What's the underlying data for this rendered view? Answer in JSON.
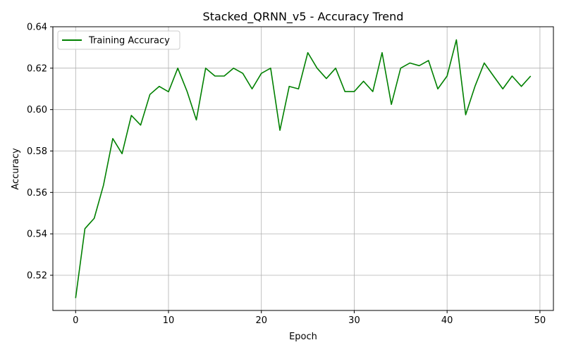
{
  "chart_data": {
    "type": "line",
    "title": "Stacked_QRNN_v5 - Accuracy Trend",
    "xlabel": "Epoch",
    "ylabel": "Accuracy",
    "xlim": [
      -2.45,
      51.45
    ],
    "ylim": [
      0.503,
      0.64
    ],
    "xticks": [
      0,
      10,
      20,
      30,
      40,
      50
    ],
    "xtick_labels": [
      "0",
      "10",
      "20",
      "30",
      "40",
      "50"
    ],
    "yticks": [
      0.52,
      0.54,
      0.56,
      0.58,
      0.6,
      0.62,
      0.64
    ],
    "ytick_labels": [
      "0.52",
      "0.54",
      "0.56",
      "0.58",
      "0.60",
      "0.62",
      "0.64"
    ],
    "grid": true,
    "legend_position": "top-left",
    "series": [
      {
        "name": "Training Accuracy",
        "color": "#008000",
        "x": [
          0,
          1,
          2,
          3,
          4,
          5,
          6,
          7,
          8,
          9,
          10,
          11,
          12,
          13,
          14,
          15,
          16,
          17,
          18,
          19,
          20,
          21,
          22,
          23,
          24,
          25,
          26,
          27,
          28,
          29,
          30,
          31,
          32,
          33,
          34,
          35,
          36,
          37,
          38,
          39,
          40,
          41,
          42,
          43,
          44,
          45,
          46,
          47,
          48,
          49
        ],
        "y": [
          0.509,
          0.5425,
          0.5475,
          0.5635,
          0.586,
          0.5787,
          0.5972,
          0.5925,
          0.6073,
          0.6112,
          0.6086,
          0.62,
          0.6088,
          0.595,
          0.62,
          0.6162,
          0.6162,
          0.62,
          0.6175,
          0.61,
          0.6175,
          0.62,
          0.59,
          0.6112,
          0.61,
          0.6275,
          0.62,
          0.615,
          0.62,
          0.6087,
          0.6087,
          0.6137,
          0.6087,
          0.6275,
          0.6025,
          0.62,
          0.6225,
          0.6212,
          0.6237,
          0.61,
          0.6162,
          0.6337,
          0.5975,
          0.6112,
          0.6225,
          0.6162,
          0.61,
          0.6162,
          0.6112,
          0.6162
        ]
      }
    ]
  }
}
